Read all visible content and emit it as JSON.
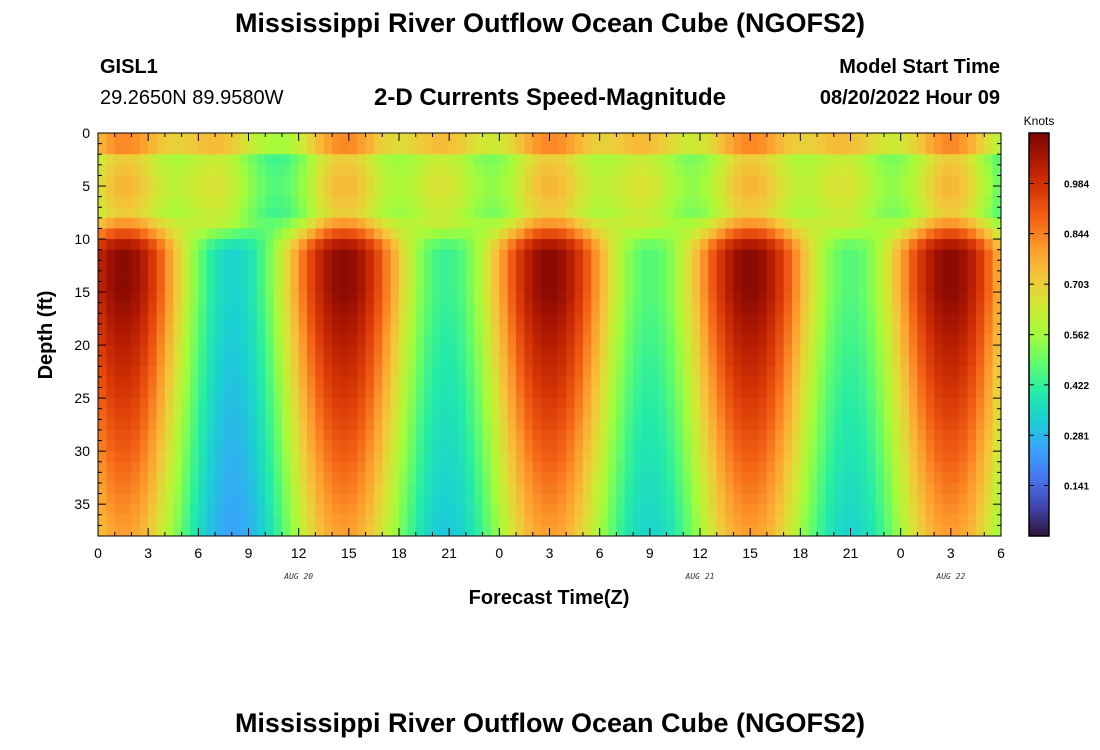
{
  "header": {
    "title": "Mississippi River Outflow Ocean Cube (NGOFS2)",
    "station": "GISL1",
    "coordinates": "29.2650N  89.9580W",
    "subtitle": "2-D Currents Speed-Magnitude",
    "model_start_label": "Model Start Time",
    "model_start_value": "08/20/2022 Hour 09"
  },
  "footer": {
    "title": "Mississippi River Outflow Ocean Cube (NGOFS2)"
  },
  "chart_data": {
    "type": "heatmap",
    "title": "2-D Currents Speed-Magnitude",
    "xlabel": "Forecast Time(Z)",
    "ylabel": "Depth (ft)",
    "x_hours_range": [
      0,
      54
    ],
    "x_tick_labels": [
      "0",
      "3",
      "6",
      "9",
      "12",
      "15",
      "18",
      "21",
      "0",
      "3",
      "6",
      "9",
      "12",
      "15",
      "18",
      "21",
      "0",
      "3",
      "6"
    ],
    "date_labels": [
      {
        "text": "AUG 20",
        "hour": 12
      },
      {
        "text": "AUG 21",
        "hour": 36
      },
      {
        "text": "AUG 22",
        "hour": 51
      }
    ],
    "ylim": [
      0,
      38
    ],
    "y_ticks": [
      0,
      5,
      10,
      15,
      20,
      25,
      30,
      35
    ],
    "y_tick_labels": [
      "0",
      "5",
      "10",
      "15",
      "20",
      "25",
      "30",
      "35"
    ],
    "colorbar": {
      "unit": "Knots",
      "range": [
        0,
        1.125
      ],
      "ticks": [
        "0.984",
        "0.844",
        "0.703",
        "0.562",
        "0.422",
        "0.281",
        "0.141"
      ],
      "tick_values": [
        0.984,
        0.844,
        0.703,
        0.562,
        0.422,
        0.281,
        0.141
      ],
      "colormap": [
        "#30123b",
        "#4145ab",
        "#4675ed",
        "#39a2fc",
        "#1bcfd4",
        "#24eca6",
        "#61fc6c",
        "#a4fc3b",
        "#d1e834",
        "#f3c63a",
        "#fe9b2d",
        "#f36315",
        "#d93806",
        "#b11901",
        "#7a0403"
      ]
    },
    "peak_hours": [
      1.5,
      14.7,
      27,
      39,
      51
    ],
    "slack_hours": [
      7.5,
      21,
      33,
      45
    ],
    "peak_speed_knots": 1.1,
    "depth_layers": {
      "surface_band": [
        0,
        8
      ],
      "mixed_band": [
        8,
        11
      ],
      "lower_band": [
        11,
        38
      ]
    }
  }
}
